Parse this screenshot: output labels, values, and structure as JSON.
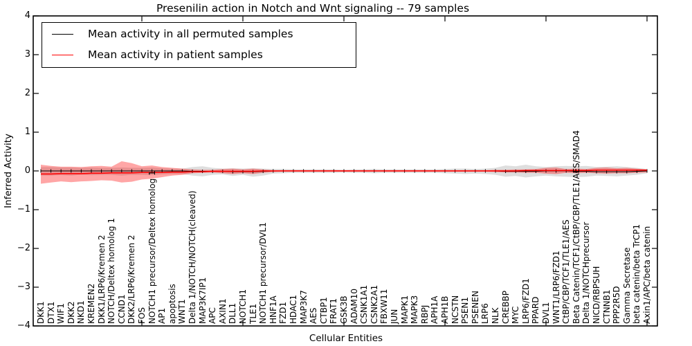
{
  "title": "Presenilin action in Notch and Wnt signaling -- 79 samples",
  "axes": {
    "xlabel": "Cellular Entities",
    "ylabel": "Inferred Activity",
    "ytick_labels": [
      "4",
      "3",
      "2",
      "1",
      "0",
      "−1",
      "−2",
      "−3",
      "−4"
    ]
  },
  "legend": {
    "items": [
      {
        "label": "Mean activity in all permuted samples",
        "color": "#000000"
      },
      {
        "label": "Mean activity in patient samples",
        "color": "#ff0000"
      }
    ]
  },
  "chart_data": {
    "type": "line",
    "title": "Presenilin action in Notch and Wnt signaling -- 79 samples",
    "xlabel": "Cellular Entities",
    "ylabel": "Inferred Activity",
    "ylim": [
      -4,
      4
    ],
    "yticks": [
      4,
      3,
      2,
      1,
      0,
      -1,
      -2,
      -3,
      -4
    ],
    "grid": false,
    "legend_position": "upper left",
    "categories": [
      "DKK1",
      "DTX1",
      "WIF1",
      "DKK2",
      "NKD1",
      "KREMEN2",
      "DKK1/LRP6/Kremen 2",
      "NOTCH/Deltex homolog 1",
      "CCND1",
      "DKK2/LRP6/Kremen 2",
      "FOS",
      "NOTCH1 precursor/Deltex homolog 1",
      "AP1",
      "apoptosis",
      "WNT1",
      "Delta 1/NOTCH/NOTCH(cleaved)",
      "MAP3K7IP1",
      "APC",
      "AXIN1",
      "DLL1",
      "NOTCH1",
      "TLE1",
      "NOTCH1 precursor/DVL1",
      "HNF1A",
      "FZD1",
      "HDAC1",
      "MAP3K7",
      "AES",
      "CTBP1",
      "FRAT1",
      "GSK3B",
      "ADAM10",
      "CSNK1A1",
      "CSNK2A1",
      "FBXW11",
      "JUN",
      "MAPK1",
      "MAPK3",
      "RBPJ",
      "APH1A",
      "APH1B",
      "NCSTN",
      "PSEN1",
      "PSENEN",
      "LRP6",
      "NLK",
      "CREBBP",
      "MYC",
      "LRP6/FZD1",
      "PPARD",
      "DVL1",
      "WNT1/LRP6/FZD1",
      "CtBP/CBP/TCF1/TLE1/AES",
      "Beta Catenin/TCF1/CtBP/CBP/TLE1/AES/SMAD4",
      "Delta 1/NOTCHprecursor",
      "NICD/RBPSUH",
      "CTNNB1",
      "PPP2R5D",
      "Gamma Secretase",
      "beta catenin/beta TrCP1",
      "Axin1/APC/beta catenin"
    ],
    "series": [
      {
        "name": "Mean activity in all permuted samples",
        "color": "#000000",
        "marker": "tick",
        "values": [
          0,
          0,
          0,
          0,
          0,
          0,
          0,
          0,
          0,
          0,
          0,
          0,
          0,
          0,
          0,
          -0.01,
          -0.01,
          -0.01,
          -0.01,
          -0.02,
          -0.02,
          -0.02,
          -0.01,
          0,
          0,
          0,
          0,
          0,
          0,
          0,
          0,
          0,
          0,
          0,
          0,
          0,
          0,
          0,
          0,
          0,
          0,
          0,
          0,
          0,
          0,
          0,
          -0.01,
          -0.01,
          -0.01,
          -0.01,
          0,
          0,
          0,
          -0.01,
          -0.01,
          -0.02,
          -0.02,
          -0.02,
          -0.02,
          -0.01,
          0
        ]
      },
      {
        "name": "Mean activity in patient samples",
        "color": "#ff0000",
        "marker": "none",
        "values": [
          -0.08,
          -0.08,
          -0.07,
          -0.07,
          -0.07,
          -0.06,
          -0.06,
          -0.05,
          -0.05,
          -0.05,
          -0.04,
          -0.04,
          -0.04,
          -0.03,
          -0.03,
          -0.02,
          -0.02,
          -0.01,
          -0.01,
          -0.01,
          -0.01,
          -0.01,
          0,
          0,
          0,
          0,
          0,
          0,
          0,
          0,
          0,
          0,
          0,
          0,
          0,
          0,
          0,
          0,
          0,
          0,
          0,
          0,
          0,
          0,
          0,
          0,
          0,
          0,
          0.01,
          0.01,
          0.01,
          0.01,
          0.01,
          0.01,
          0.01,
          0.02,
          0.02,
          0.02,
          0.02,
          0.02,
          0.02
        ]
      }
    ],
    "bands": [
      {
        "name": "permuted-sample-range",
        "fill": "rgba(0,0,0,0.13)",
        "upper": [
          0.1,
          0.1,
          0.09,
          0.09,
          0.08,
          0.09,
          0.08,
          0.08,
          0.09,
          0.08,
          0.08,
          0.09,
          0.07,
          0.06,
          0.06,
          0.1,
          0.12,
          0.08,
          0.06,
          0.07,
          0.06,
          0.07,
          0.06,
          0.05,
          0.05,
          0.04,
          0.04,
          0.04,
          0.04,
          0.04,
          0.03,
          0.04,
          0.04,
          0.05,
          0.04,
          0.04,
          0.04,
          0.04,
          0.04,
          0.04,
          0.05,
          0.06,
          0.06,
          0.05,
          0.06,
          0.08,
          0.14,
          0.12,
          0.16,
          0.12,
          0.1,
          0.12,
          0.13,
          0.12,
          0.13,
          0.1,
          0.11,
          0.12,
          0.1,
          0.08,
          0.05
        ],
        "lower": [
          -0.12,
          -0.12,
          -0.11,
          -0.12,
          -0.1,
          -0.11,
          -0.1,
          -0.1,
          -0.12,
          -0.1,
          -0.1,
          -0.11,
          -0.09,
          -0.08,
          -0.08,
          -0.12,
          -0.14,
          -0.1,
          -0.09,
          -0.13,
          -0.1,
          -0.15,
          -0.12,
          -0.07,
          -0.06,
          -0.05,
          -0.05,
          -0.05,
          -0.05,
          -0.05,
          -0.04,
          -0.05,
          -0.05,
          -0.06,
          -0.05,
          -0.05,
          -0.05,
          -0.05,
          -0.05,
          -0.05,
          -0.06,
          -0.07,
          -0.08,
          -0.07,
          -0.08,
          -0.1,
          -0.15,
          -0.13,
          -0.17,
          -0.14,
          -0.12,
          -0.14,
          -0.15,
          -0.16,
          -0.15,
          -0.12,
          -0.13,
          -0.14,
          -0.12,
          -0.1,
          -0.06
        ]
      },
      {
        "name": "patient-sample-range",
        "fill": "rgba(255,0,0,0.35)",
        "upper": [
          0.16,
          0.13,
          0.11,
          0.11,
          0.1,
          0.12,
          0.13,
          0.11,
          0.25,
          0.2,
          0.12,
          0.14,
          0.1,
          0.08,
          0.06,
          0.04,
          0.03,
          0.03,
          0.05,
          0.06,
          0.04,
          0.06,
          0.04,
          0.02,
          0.02,
          0.02,
          0.02,
          0.02,
          0.02,
          0.02,
          0.02,
          0.02,
          0.02,
          0.02,
          0.02,
          0.02,
          0.02,
          0.02,
          0.02,
          0.02,
          0.02,
          0.02,
          0.02,
          0.02,
          0.02,
          0.03,
          0.03,
          0.04,
          0.04,
          0.05,
          0.08,
          0.09,
          0.05,
          0.06,
          0.05,
          0.08,
          0.09,
          0.07,
          0.08,
          0.06,
          0.04
        ],
        "lower": [
          -0.33,
          -0.3,
          -0.27,
          -0.29,
          -0.27,
          -0.26,
          -0.24,
          -0.25,
          -0.3,
          -0.28,
          -0.22,
          -0.2,
          -0.16,
          -0.12,
          -0.1,
          -0.06,
          -0.05,
          -0.04,
          -0.06,
          -0.08,
          -0.06,
          -0.08,
          -0.05,
          -0.03,
          -0.02,
          -0.02,
          -0.02,
          -0.02,
          -0.02,
          -0.02,
          -0.02,
          -0.02,
          -0.02,
          -0.02,
          -0.02,
          -0.02,
          -0.02,
          -0.02,
          -0.02,
          -0.02,
          -0.02,
          -0.02,
          -0.02,
          -0.02,
          -0.02,
          -0.03,
          -0.04,
          -0.04,
          -0.05,
          -0.05,
          -0.07,
          -0.08,
          -0.05,
          -0.06,
          -0.05,
          -0.06,
          -0.07,
          -0.06,
          -0.06,
          -0.05,
          -0.04
        ]
      }
    ]
  }
}
